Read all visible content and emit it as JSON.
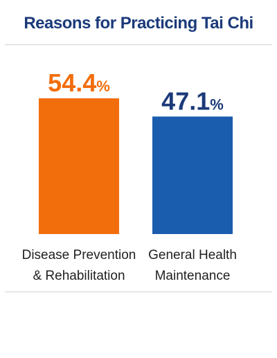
{
  "chart_data": {
    "type": "bar",
    "title": "Reasons for Practicing Tai Chi",
    "categories": [
      "Disease Prevention & Rehabilitation",
      "General Health Maintenance"
    ],
    "category_lines": [
      [
        "Disease Prevention",
        "& Rehabilitation"
      ],
      [
        "General Health",
        "Maintenance"
      ]
    ],
    "values": [
      54.4,
      47.1
    ],
    "value_labels": [
      "54.4",
      "47.1"
    ],
    "unit": "%",
    "bar_colors": [
      "#f26d0c",
      "#1a5cae"
    ],
    "label_colors": [
      "#f26d0c",
      "#1b3a7a"
    ],
    "xlabel": "",
    "ylabel": "",
    "ylim": [
      0,
      54.4
    ],
    "grid": false,
    "legend": "none"
  }
}
